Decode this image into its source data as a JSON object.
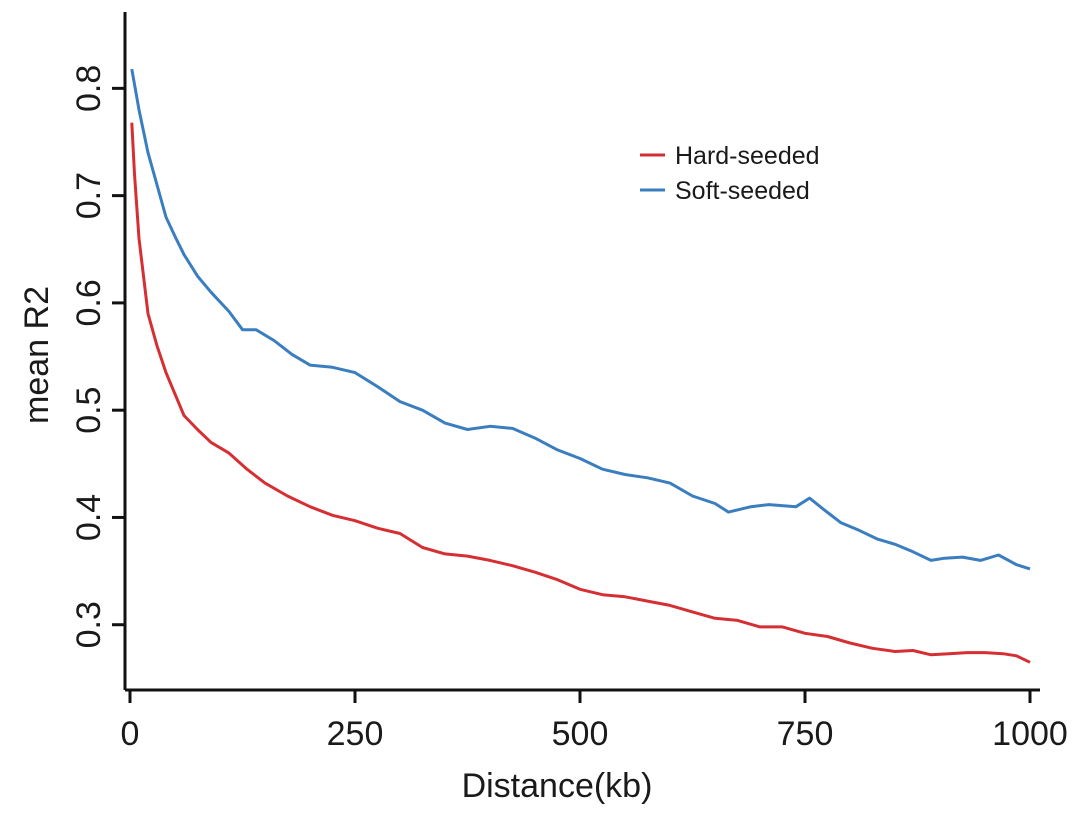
{
  "chart_data": {
    "type": "line",
    "xlabel": "Distance(kb)",
    "ylabel": "mean R2",
    "xlim": [
      0,
      1000
    ],
    "ylim": [
      0.255,
      0.86
    ],
    "x_ticks": [
      0,
      250,
      500,
      750,
      1000
    ],
    "y_ticks": [
      0.3,
      0.4,
      0.5,
      0.6,
      0.7,
      0.8
    ],
    "grid": false,
    "legend_position": "top-right",
    "series": [
      {
        "name": "Hard-seeded",
        "color": "#d62f33",
        "points": [
          [
            2,
            0.768
          ],
          [
            5,
            0.72
          ],
          [
            10,
            0.66
          ],
          [
            20,
            0.59
          ],
          [
            30,
            0.56
          ],
          [
            40,
            0.535
          ],
          [
            50,
            0.515
          ],
          [
            60,
            0.495
          ],
          [
            75,
            0.482
          ],
          [
            90,
            0.47
          ],
          [
            110,
            0.46
          ],
          [
            130,
            0.445
          ],
          [
            150,
            0.432
          ],
          [
            175,
            0.42
          ],
          [
            200,
            0.41
          ],
          [
            225,
            0.402
          ],
          [
            250,
            0.397
          ],
          [
            275,
            0.39
          ],
          [
            300,
            0.385
          ],
          [
            325,
            0.372
          ],
          [
            350,
            0.366
          ],
          [
            375,
            0.364
          ],
          [
            400,
            0.36
          ],
          [
            425,
            0.355
          ],
          [
            450,
            0.349
          ],
          [
            475,
            0.342
          ],
          [
            500,
            0.333
          ],
          [
            525,
            0.328
          ],
          [
            550,
            0.326
          ],
          [
            575,
            0.322
          ],
          [
            600,
            0.318
          ],
          [
            625,
            0.312
          ],
          [
            650,
            0.306
          ],
          [
            675,
            0.304
          ],
          [
            700,
            0.298
          ],
          [
            725,
            0.298
          ],
          [
            750,
            0.292
          ],
          [
            775,
            0.289
          ],
          [
            800,
            0.283
          ],
          [
            825,
            0.278
          ],
          [
            850,
            0.275
          ],
          [
            870,
            0.276
          ],
          [
            890,
            0.272
          ],
          [
            910,
            0.273
          ],
          [
            930,
            0.274
          ],
          [
            950,
            0.274
          ],
          [
            970,
            0.273
          ],
          [
            985,
            0.271
          ],
          [
            1000,
            0.265
          ]
        ]
      },
      {
        "name": "Soft-seeded",
        "color": "#3a7ebf",
        "points": [
          [
            2,
            0.818
          ],
          [
            10,
            0.78
          ],
          [
            20,
            0.74
          ],
          [
            30,
            0.71
          ],
          [
            40,
            0.68
          ],
          [
            50,
            0.662
          ],
          [
            60,
            0.645
          ],
          [
            75,
            0.625
          ],
          [
            90,
            0.61
          ],
          [
            110,
            0.592
          ],
          [
            125,
            0.575
          ],
          [
            140,
            0.575
          ],
          [
            160,
            0.565
          ],
          [
            180,
            0.552
          ],
          [
            200,
            0.542
          ],
          [
            225,
            0.54
          ],
          [
            250,
            0.535
          ],
          [
            275,
            0.522
          ],
          [
            300,
            0.508
          ],
          [
            325,
            0.5
          ],
          [
            350,
            0.488
          ],
          [
            375,
            0.482
          ],
          [
            400,
            0.485
          ],
          [
            425,
            0.483
          ],
          [
            450,
            0.474
          ],
          [
            475,
            0.463
          ],
          [
            500,
            0.455
          ],
          [
            525,
            0.445
          ],
          [
            550,
            0.44
          ],
          [
            575,
            0.437
          ],
          [
            600,
            0.432
          ],
          [
            625,
            0.42
          ],
          [
            650,
            0.413
          ],
          [
            665,
            0.405
          ],
          [
            690,
            0.41
          ],
          [
            710,
            0.412
          ],
          [
            740,
            0.41
          ],
          [
            755,
            0.418
          ],
          [
            770,
            0.408
          ],
          [
            790,
            0.395
          ],
          [
            810,
            0.388
          ],
          [
            830,
            0.38
          ],
          [
            850,
            0.375
          ],
          [
            870,
            0.368
          ],
          [
            890,
            0.36
          ],
          [
            905,
            0.362
          ],
          [
            925,
            0.363
          ],
          [
            945,
            0.36
          ],
          [
            965,
            0.365
          ],
          [
            985,
            0.356
          ],
          [
            1000,
            0.352
          ]
        ]
      }
    ]
  }
}
